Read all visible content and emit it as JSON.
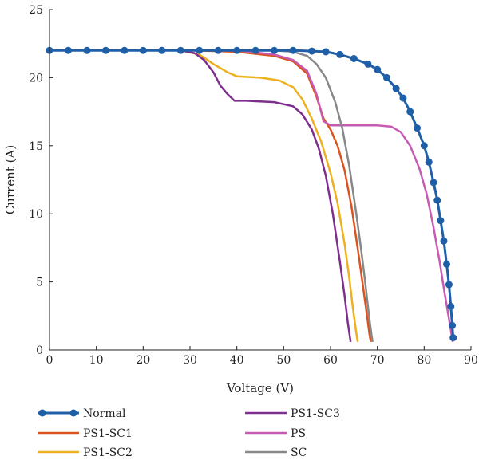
{
  "chart_data": {
    "type": "line",
    "title": "",
    "xlabel": "Voltage (V)",
    "ylabel": "Current (A)",
    "xlim": [
      0,
      90
    ],
    "ylim": [
      0,
      25
    ],
    "xticks": [
      0,
      10,
      20,
      30,
      40,
      50,
      60,
      70,
      80,
      90
    ],
    "yticks": [
      0,
      5,
      10,
      15,
      20,
      25
    ],
    "grid": false,
    "legend_position": "bottom",
    "series": [
      {
        "name": "Normal",
        "color": "#1f5fa8",
        "marker": "circle",
        "x": [
          0,
          4,
          8,
          12,
          16,
          20,
          24,
          28,
          32,
          36,
          40,
          44,
          48,
          52,
          56,
          59,
          62,
          65,
          68,
          70,
          72,
          74,
          75.5,
          77,
          78.5,
          80,
          81,
          82,
          82.8,
          83.5,
          84.2,
          84.8,
          85.3,
          85.7,
          86,
          86.2
        ],
        "y": [
          22,
          22,
          22,
          22,
          22,
          22,
          22,
          22,
          22,
          22,
          22,
          22,
          22,
          22,
          21.95,
          21.9,
          21.7,
          21.4,
          21.0,
          20.6,
          20.0,
          19.2,
          18.5,
          17.5,
          16.3,
          15.0,
          13.8,
          12.3,
          11.0,
          9.5,
          8.0,
          6.3,
          4.8,
          3.2,
          1.8,
          0.9
        ]
      },
      {
        "name": "PS1-SC1",
        "color": "#d9541e",
        "marker": "none",
        "x": [
          0,
          30,
          40,
          48,
          52,
          55,
          57,
          58.5,
          60,
          61.5,
          63,
          64.5,
          66,
          67,
          67.8,
          68.3,
          68.6
        ],
        "y": [
          22,
          22,
          21.9,
          21.6,
          21.2,
          20.3,
          18.6,
          17.0,
          16.2,
          15.0,
          13.2,
          10.5,
          7.0,
          4.5,
          2.5,
          1.2,
          0.6
        ]
      },
      {
        "name": "PS1-SC2",
        "color": "#edb120",
        "marker": "none",
        "x": [
          0,
          28,
          32,
          35,
          38,
          40,
          45,
          49,
          52,
          54,
          56,
          58,
          60,
          61.5,
          63,
          64,
          64.8,
          65.4,
          65.8
        ],
        "y": [
          22,
          22,
          21.7,
          21.0,
          20.4,
          20.1,
          20.0,
          19.8,
          19.3,
          18.4,
          17.0,
          15.3,
          13.0,
          10.8,
          7.8,
          5.3,
          3.0,
          1.5,
          0.6
        ]
      },
      {
        "name": "PS1-SC3",
        "color": "#7e2f8e",
        "marker": "none",
        "x": [
          0,
          28,
          31,
          33,
          35,
          36.5,
          38,
          39.5,
          42,
          48,
          52,
          54,
          56,
          57.5,
          59,
          60.5,
          62,
          63,
          63.7,
          64.3
        ],
        "y": [
          22,
          22,
          21.8,
          21.3,
          20.4,
          19.4,
          18.8,
          18.3,
          18.3,
          18.2,
          17.9,
          17.3,
          16.2,
          14.8,
          12.8,
          10.0,
          6.5,
          4.0,
          2.0,
          0.6
        ]
      },
      {
        "name": "PS",
        "color": "#c65bb3",
        "marker": "none",
        "x": [
          0,
          40,
          48,
          52,
          55,
          57,
          58.5,
          60,
          65,
          70,
          73,
          75,
          77,
          79,
          80.5,
          82,
          83.3,
          84.3,
          85.2,
          85.8,
          86.1
        ],
        "y": [
          22,
          22,
          21.7,
          21.3,
          20.5,
          18.8,
          16.8,
          16.5,
          16.5,
          16.5,
          16.4,
          16.0,
          15.0,
          13.3,
          11.5,
          9.0,
          6.5,
          4.3,
          2.5,
          1.2,
          0.6
        ]
      },
      {
        "name": "SC",
        "color": "#888888",
        "marker": "none",
        "x": [
          0,
          40,
          48,
          52,
          55,
          57,
          59,
          61,
          62.5,
          64,
          65.5,
          66.5,
          67.3,
          67.9,
          68.4,
          68.8,
          69
        ],
        "y": [
          22,
          22,
          22,
          21.9,
          21.6,
          21.0,
          20.0,
          18.2,
          16.3,
          13.5,
          10.0,
          7.5,
          5.3,
          3.5,
          2.0,
          1.0,
          0.6
        ]
      }
    ]
  }
}
